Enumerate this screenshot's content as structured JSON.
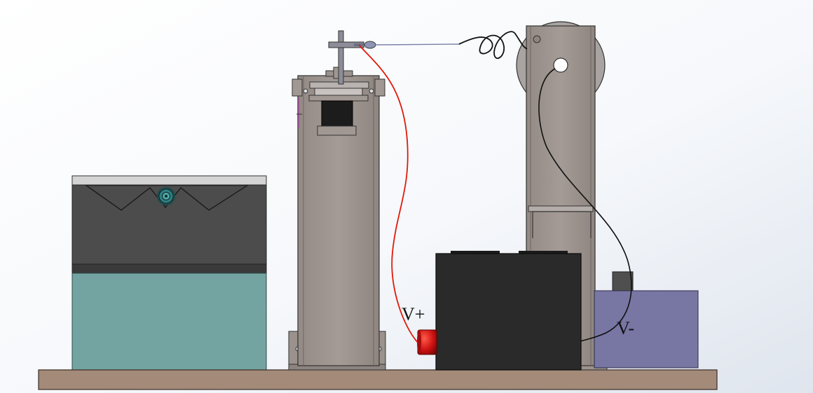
{
  "labels": {
    "v_plus": "V+",
    "v_minus": "V-"
  },
  "colors": {
    "base_plate": "#a38a79",
    "column_metal": "#a29893",
    "dark_housing": "#4c4c4c",
    "teal_block": "#74a4a1",
    "black_box": "#2a2a2a",
    "purple_box": "#7876a3",
    "red_terminal": "#cc1111",
    "red_wire": "#e01a0a",
    "black_wire": "#111111",
    "filament": "#7a82a8"
  }
}
